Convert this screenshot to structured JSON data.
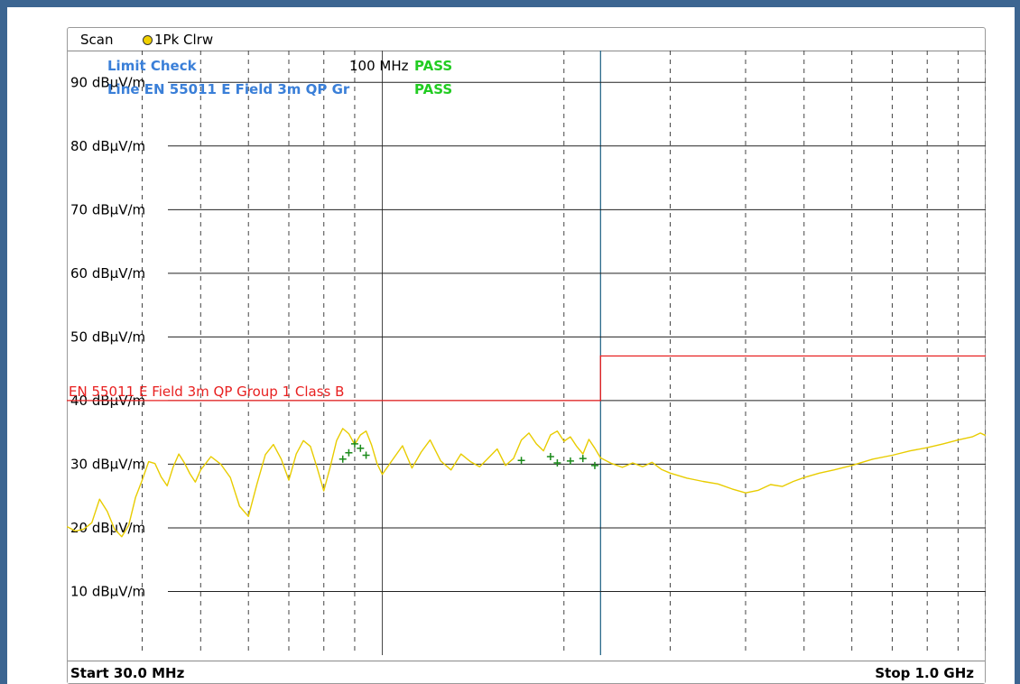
{
  "header": {
    "scan_label": "Scan",
    "trace_label": "1Pk Clrw"
  },
  "limit_check": {
    "title": "Limit Check",
    "title_result": "PASS",
    "freq_label": "100 MHz",
    "line_label": "Line EN 55011 E Field 3m QP Gr",
    "line_result": "PASS"
  },
  "footer": {
    "start": "Start 30.0 MHz",
    "stop": "Stop 1.0 GHz"
  },
  "colors": {
    "trace": "#e8cc00",
    "limit_line": "#e82020",
    "marker": "#1a8a1a",
    "pass": "#22cc22",
    "limit_text": "#3a7fd8",
    "vline": "#2a6a8a"
  },
  "chart_data": {
    "type": "line",
    "x_scale": "log",
    "xlim_mhz": [
      30,
      1000
    ],
    "ylim": [
      0,
      95
    ],
    "y_unit": "dBµV/m",
    "y_ticks": [
      {
        "value": 90,
        "label": "90 dBµV/m"
      },
      {
        "value": 80,
        "label": "80 dBµV/m"
      },
      {
        "value": 70,
        "label": "70 dBµV/m"
      },
      {
        "value": 60,
        "label": "60 dBµV/m"
      },
      {
        "value": 50,
        "label": "50 dBµV/m"
      },
      {
        "value": 40,
        "label": "40 dBµV/m"
      },
      {
        "value": 30,
        "label": "30 dBµV/m"
      },
      {
        "value": 20,
        "label": "20 dBµV/m"
      },
      {
        "value": 10,
        "label": "10 dBµV/m"
      }
    ],
    "grid_x_mhz": [
      40,
      50,
      60,
      70,
      80,
      90,
      100,
      200,
      300,
      400,
      500,
      600,
      700,
      800,
      900,
      1000
    ],
    "marker_line_mhz": 230,
    "limit_line": {
      "label": "EN 55011 E Field 3m QP Group 1 Class B",
      "points": [
        [
          30,
          40
        ],
        [
          230,
          40
        ],
        [
          230,
          47
        ],
        [
          1000,
          47
        ]
      ]
    },
    "trace": {
      "name": "1Pk Clrw",
      "points": [
        [
          30,
          20.2
        ],
        [
          31,
          19.5
        ],
        [
          32,
          19.8
        ],
        [
          33,
          20.8
        ],
        [
          34,
          24.5
        ],
        [
          35,
          22.6
        ],
        [
          36,
          19.8
        ],
        [
          37,
          18.6
        ],
        [
          38,
          20.4
        ],
        [
          39,
          24.8
        ],
        [
          40,
          27.5
        ],
        [
          41,
          30.4
        ],
        [
          42,
          30.1
        ],
        [
          43,
          28.0
        ],
        [
          44,
          26.6
        ],
        [
          45,
          29.5
        ],
        [
          46,
          31.6
        ],
        [
          47,
          30.2
        ],
        [
          48,
          28.5
        ],
        [
          49,
          27.2
        ],
        [
          50,
          29.1
        ],
        [
          52,
          31.2
        ],
        [
          54,
          30.0
        ],
        [
          56,
          27.9
        ],
        [
          58,
          23.4
        ],
        [
          60,
          21.8
        ],
        [
          62,
          26.9
        ],
        [
          64,
          31.5
        ],
        [
          66,
          33.1
        ],
        [
          68,
          30.8
        ],
        [
          70,
          27.5
        ],
        [
          72,
          31.6
        ],
        [
          74,
          33.7
        ],
        [
          76,
          32.8
        ],
        [
          78,
          29.4
        ],
        [
          80,
          25.8
        ],
        [
          82,
          29.6
        ],
        [
          84,
          33.7
        ],
        [
          86,
          35.6
        ],
        [
          88,
          34.8
        ],
        [
          90,
          33.1
        ],
        [
          92,
          34.6
        ],
        [
          94,
          35.2
        ],
        [
          96,
          33.0
        ],
        [
          98,
          30.1
        ],
        [
          100,
          28.4
        ],
        [
          104,
          30.7
        ],
        [
          108,
          32.9
        ],
        [
          112,
          29.4
        ],
        [
          116,
          31.9
        ],
        [
          120,
          33.8
        ],
        [
          125,
          30.5
        ],
        [
          130,
          29.1
        ],
        [
          135,
          31.6
        ],
        [
          140,
          30.4
        ],
        [
          145,
          29.6
        ],
        [
          150,
          31.0
        ],
        [
          155,
          32.4
        ],
        [
          160,
          29.8
        ],
        [
          165,
          30.9
        ],
        [
          170,
          33.8
        ],
        [
          175,
          34.9
        ],
        [
          180,
          33.2
        ],
        [
          185,
          32.1
        ],
        [
          190,
          34.6
        ],
        [
          195,
          35.2
        ],
        [
          200,
          33.6
        ],
        [
          205,
          34.3
        ],
        [
          210,
          32.8
        ],
        [
          215,
          31.6
        ],
        [
          220,
          33.9
        ],
        [
          225,
          32.5
        ],
        [
          230,
          31.0
        ],
        [
          240,
          30.1
        ],
        [
          250,
          29.5
        ],
        [
          260,
          30.2
        ],
        [
          270,
          29.6
        ],
        [
          280,
          30.3
        ],
        [
          290,
          29.2
        ],
        [
          300,
          28.6
        ],
        [
          320,
          27.8
        ],
        [
          340,
          27.3
        ],
        [
          360,
          26.9
        ],
        [
          380,
          26.1
        ],
        [
          400,
          25.5
        ],
        [
          420,
          25.9
        ],
        [
          440,
          26.8
        ],
        [
          460,
          26.5
        ],
        [
          480,
          27.3
        ],
        [
          500,
          27.9
        ],
        [
          530,
          28.6
        ],
        [
          560,
          29.1
        ],
        [
          600,
          29.8
        ],
        [
          650,
          30.8
        ],
        [
          700,
          31.4
        ],
        [
          750,
          32.1
        ],
        [
          800,
          32.6
        ],
        [
          850,
          33.2
        ],
        [
          900,
          33.8
        ],
        [
          950,
          34.3
        ],
        [
          980,
          34.9
        ],
        [
          1000,
          34.5
        ]
      ]
    },
    "markers_mhz_db": [
      [
        86,
        30.8
      ],
      [
        88,
        31.8
      ],
      [
        90,
        33.2
      ],
      [
        92,
        32.5
      ],
      [
        94,
        31.4
      ],
      [
        170,
        30.6
      ],
      [
        190,
        31.2
      ],
      [
        195,
        30.2
      ],
      [
        205,
        30.5
      ],
      [
        215,
        30.9
      ],
      [
        225,
        29.8
      ]
    ]
  }
}
